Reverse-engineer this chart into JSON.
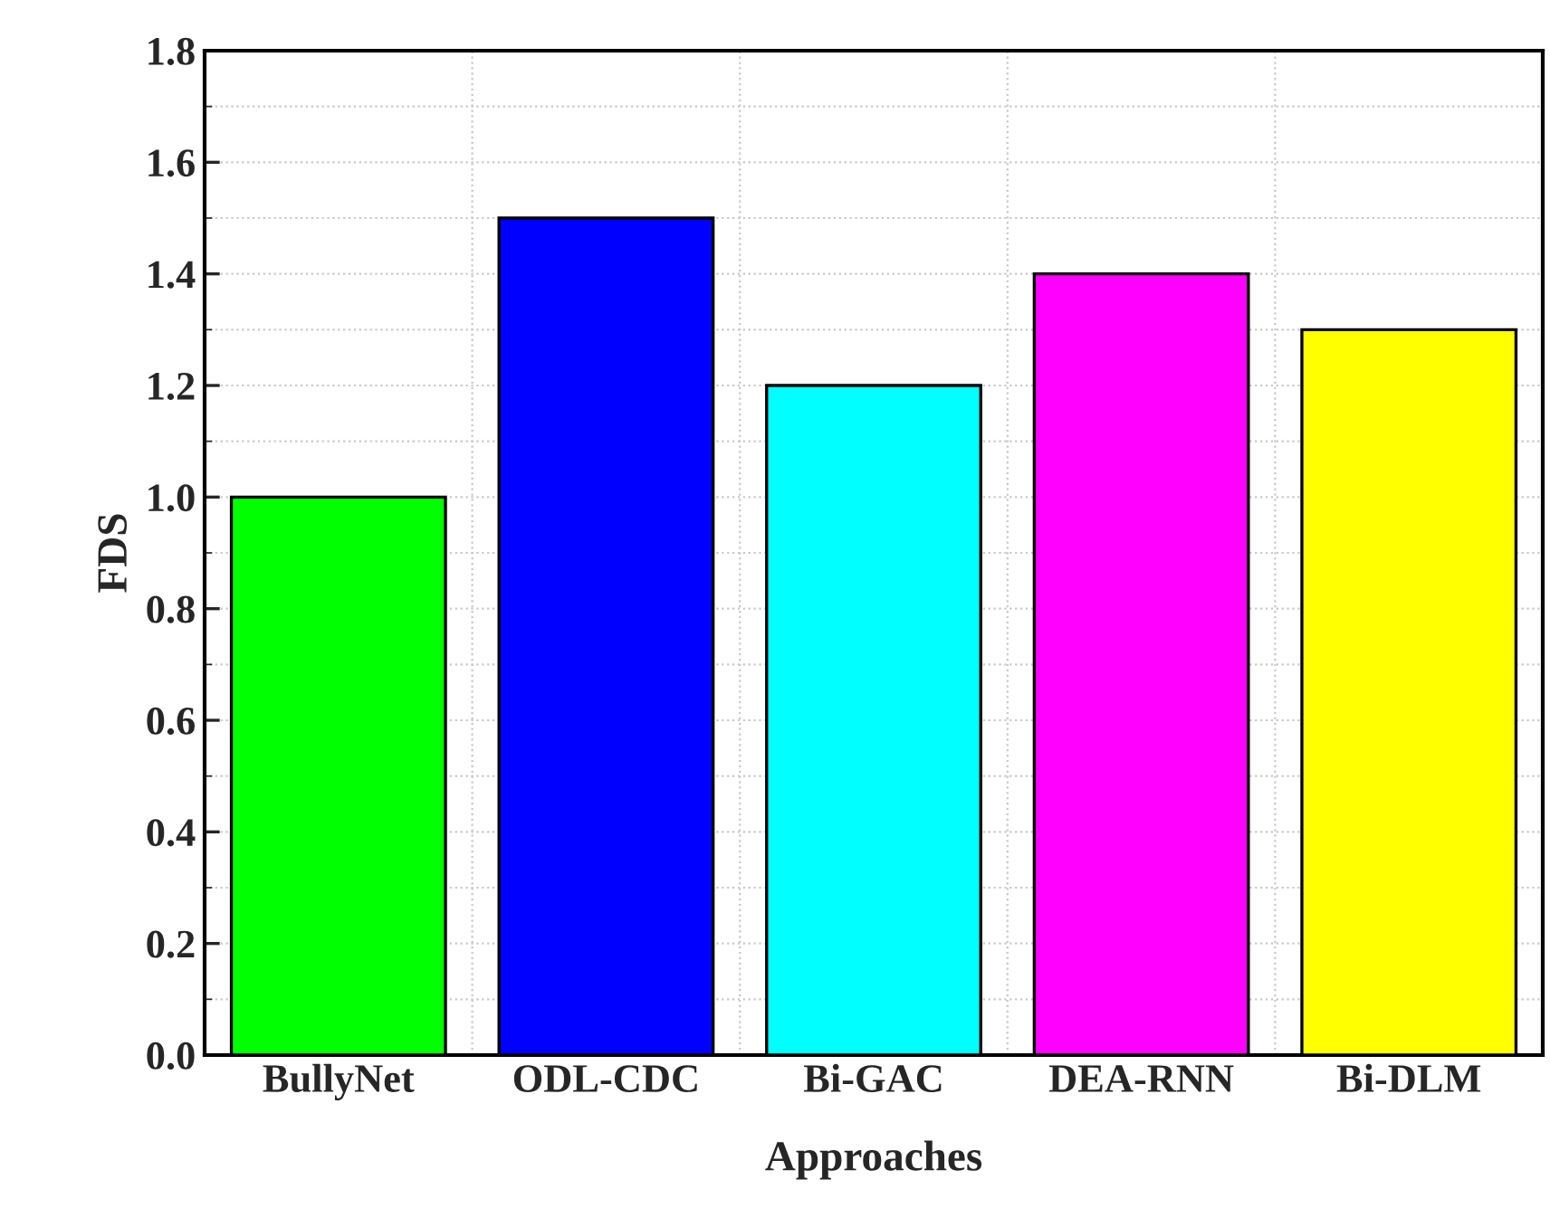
{
  "chart_data": {
    "type": "bar",
    "xlabel": "Approaches",
    "ylabel": "FDS",
    "categories": [
      "BullyNet",
      "ODL-CDC",
      "Bi-GAC",
      "DEA-RNN",
      "Bi-DLM"
    ],
    "values": [
      1.0,
      1.5,
      1.2,
      1.4,
      1.3
    ],
    "colors": [
      "#00ff00",
      "#0000ff",
      "#00ffff",
      "#ff00ff",
      "#ffff00"
    ],
    "ylim": [
      0,
      1.8
    ],
    "yticks": [
      {
        "value": 0,
        "label": "0.0"
      },
      0.2,
      0.4,
      0.6,
      0.8,
      {
        "value": 1,
        "label": "1.0"
      },
      1.2,
      1.4,
      1.6,
      1.8
    ],
    "grid": true
  }
}
